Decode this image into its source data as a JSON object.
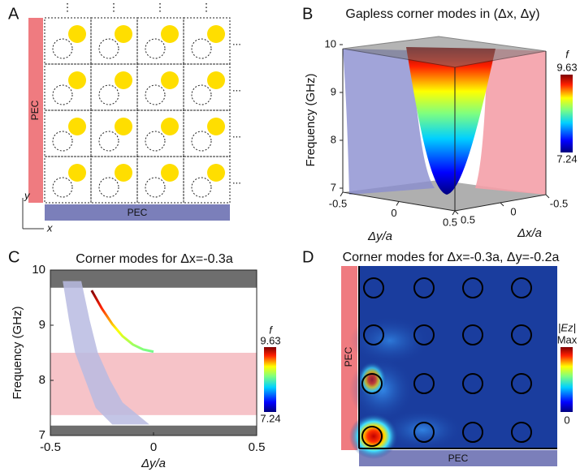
{
  "panel_labels": [
    "A",
    "B",
    "C",
    "D"
  ],
  "panel_a": {
    "pec_left": "PEC",
    "pec_bottom": "PEC",
    "y_label": "y",
    "x_label": "x",
    "more_down": "⋮",
    "more_right": "..."
  },
  "chart_data": [
    {
      "type": "surface3d",
      "title": "Gapless corner modes in (Δx, Δy)",
      "ylabel": "Frequency (GHz)",
      "xlabel": "Δy/a",
      "zlabel": "Δx/a",
      "ylim": [
        7,
        10
      ],
      "yticks": [
        7,
        8,
        9,
        10
      ],
      "xlim": [
        -0.5,
        0.5
      ],
      "xticks": [
        -0.5,
        0,
        0.5
      ],
      "zlim": [
        0.5,
        -0.5
      ],
      "zticks": [
        0.5,
        0,
        -0.5
      ],
      "colorbar_label": "f",
      "clim": [
        7.24,
        9.63
      ]
    },
    {
      "type": "line",
      "title": "Corner modes for Δx=-0.3a",
      "ylabel": "Frequency (GHz)",
      "xlabel": "Δy/a",
      "xlim": [
        -0.5,
        0.5
      ],
      "xticks": [
        -0.5,
        0,
        0.5
      ],
      "ylim": [
        7,
        10
      ],
      "yticks": [
        7,
        8,
        9,
        10
      ],
      "x": [
        -0.3,
        -0.25,
        -0.2,
        -0.15,
        -0.1,
        -0.05,
        0
      ],
      "series": [
        {
          "values": [
            9.63,
            9.3,
            9.02,
            8.8,
            8.65,
            8.56,
            8.52
          ]
        }
      ],
      "bands": [
        {
          "ymin": 9.68,
          "ymax": 10,
          "color": "#6e6e6e"
        },
        {
          "ymin": 7.37,
          "ymax": 8.5,
          "color": "#f6c3c8"
        },
        {
          "ymin": 7,
          "ymax": 7.18,
          "color": "#6e6e6e"
        }
      ],
      "edge_band": {
        "x": [
          -0.44,
          -0.41,
          -0.38,
          -0.33,
          -0.28,
          -0.2,
          -0.02,
          -0.15,
          -0.21,
          -0.27,
          -0.31,
          -0.35
        ],
        "y": [
          9.8,
          9.1,
          8.5,
          8.0,
          7.5,
          7.2,
          7.2,
          7.6,
          8.0,
          8.5,
          9.1,
          9.8
        ],
        "color": "#b9bbe2"
      },
      "colorbar_label": "f",
      "clim": [
        7.24,
        9.63
      ]
    },
    {
      "type": "heatmap",
      "title": "Corner modes for Δx=-0.3a, Δy=-0.2a",
      "pec_left": "PEC",
      "pec_bottom": "PEC",
      "colorbar_label": "|Ez|",
      "colorbar_labels": [
        "0",
        "Max"
      ]
    }
  ]
}
